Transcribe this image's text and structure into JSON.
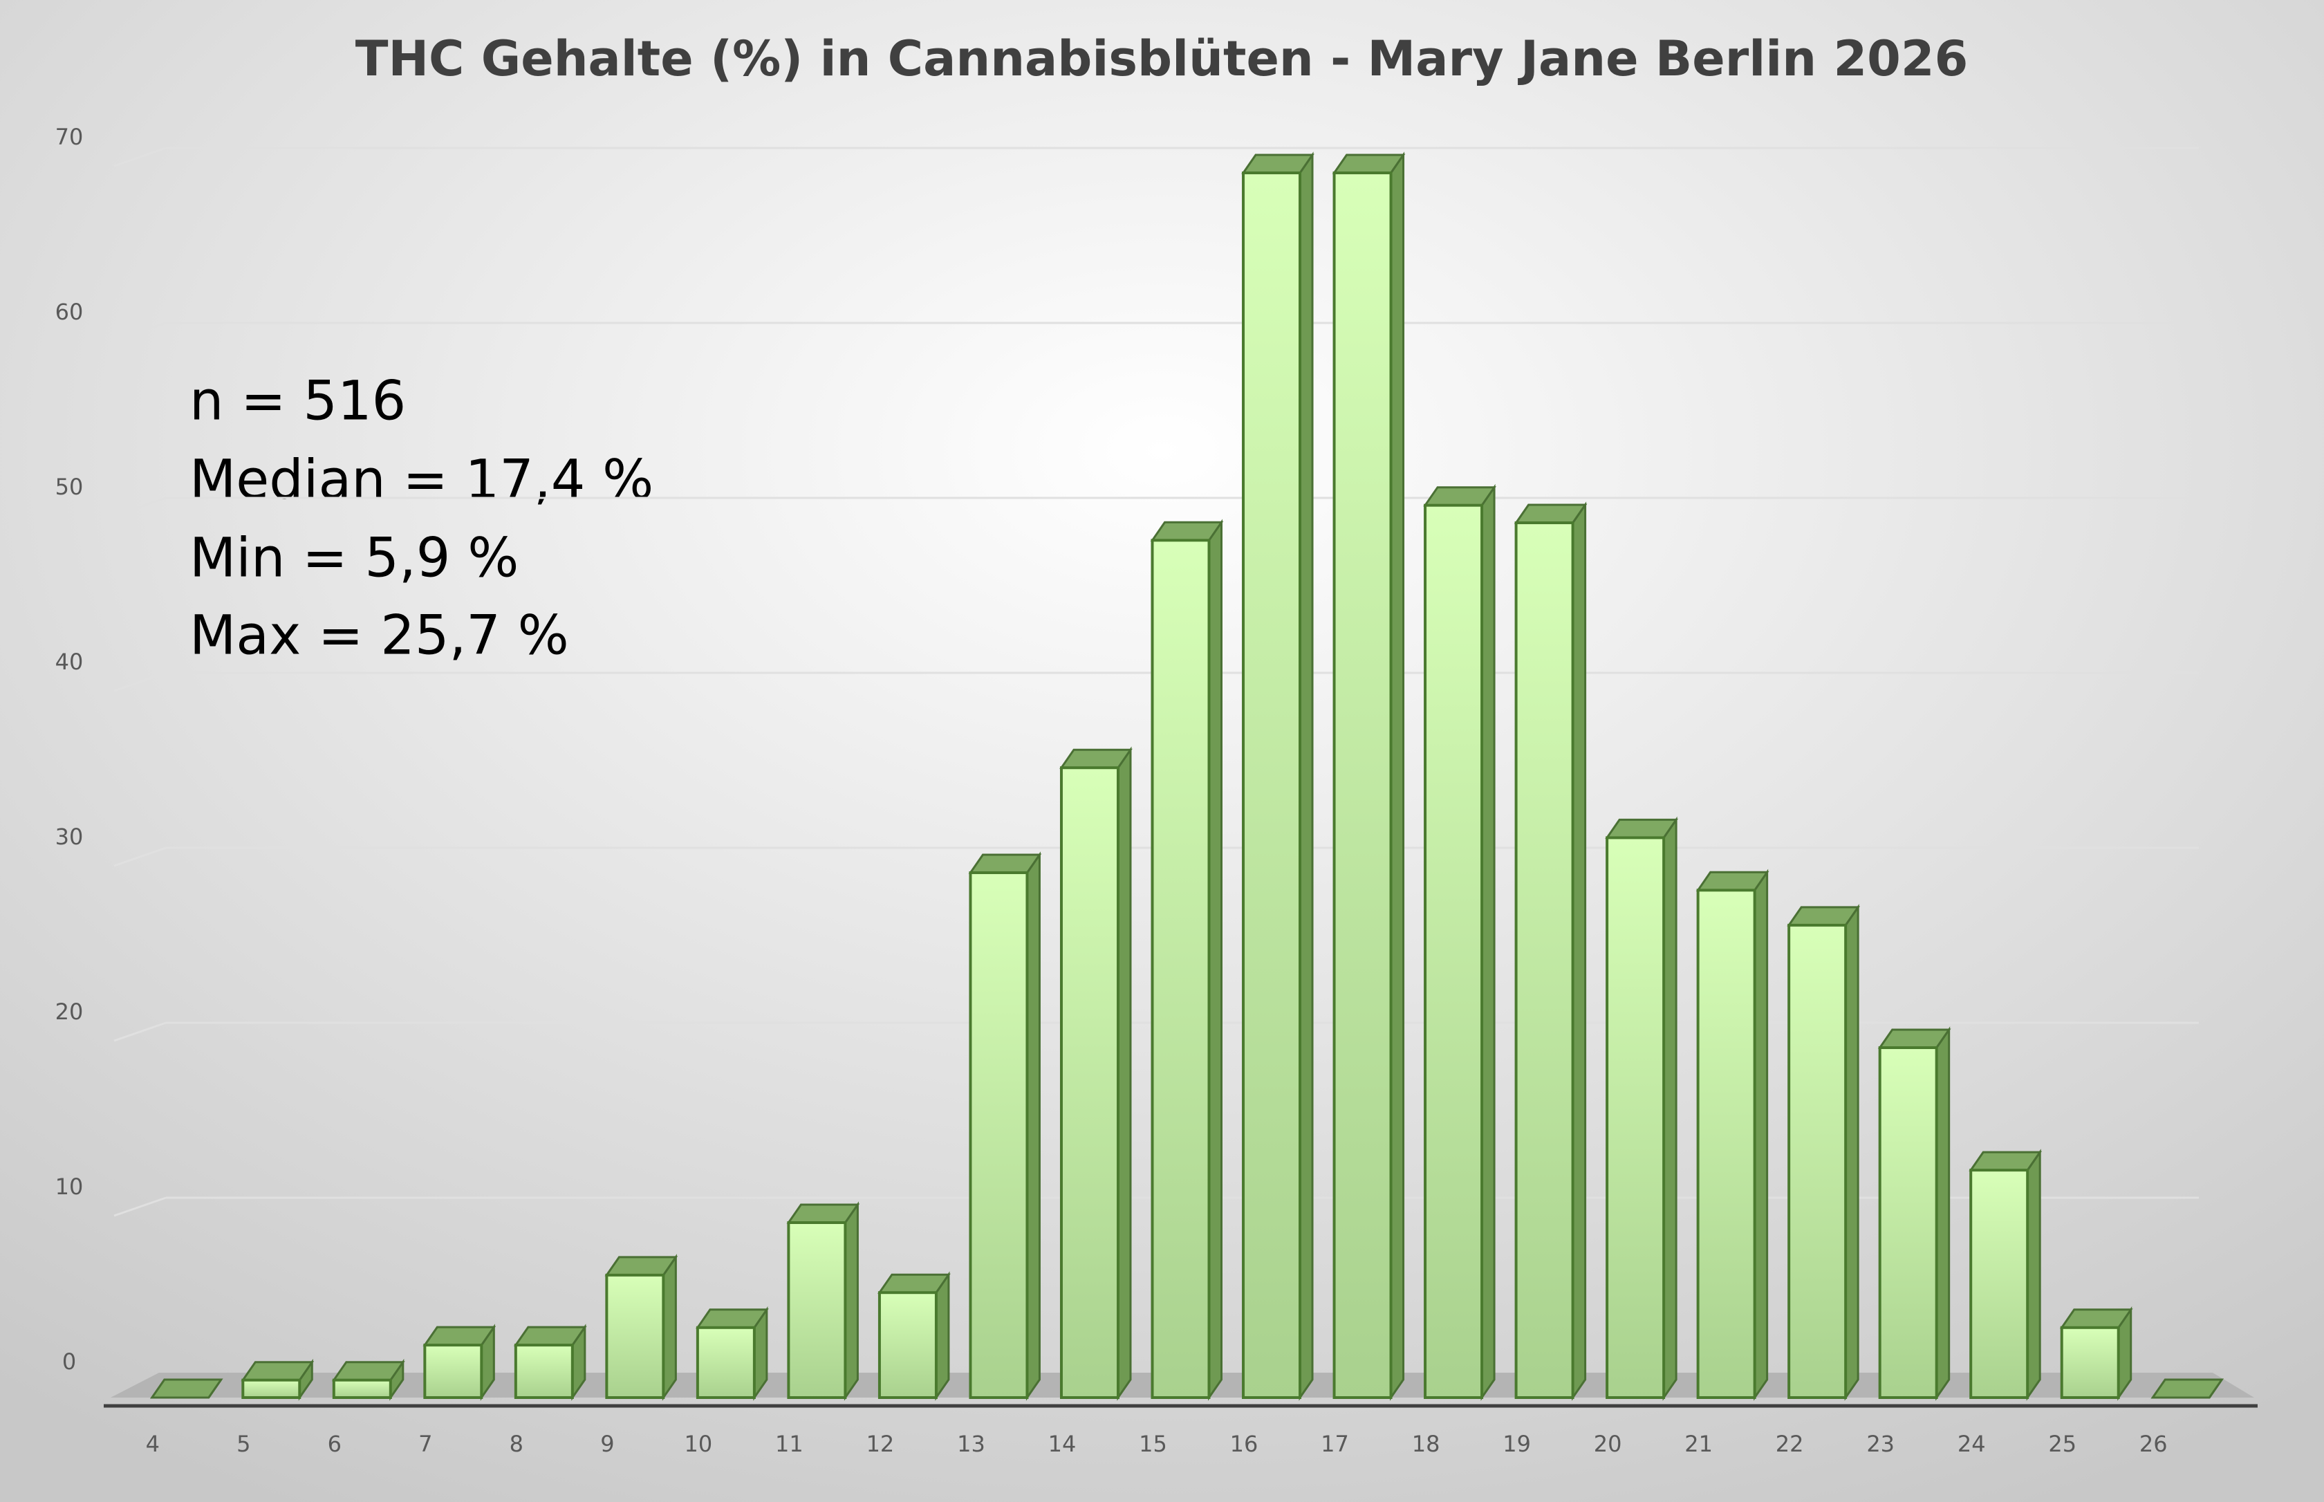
{
  "chart_data": {
    "type": "bar",
    "title": "THC Gehalte (%) in Cannabisblüten - Mary Jane Berlin 2026",
    "annotations": [
      "n = 516",
      "Median = 17,4 %",
      "Min = 5,9 %",
      "Max = 25,7 %"
    ],
    "categories": [
      "4",
      "5",
      "6",
      "7",
      "8",
      "9",
      "10",
      "11",
      "12",
      "13",
      "14",
      "15",
      "16",
      "17",
      "18",
      "19",
      "20",
      "21",
      "22",
      "23",
      "24",
      "25",
      "26"
    ],
    "values": [
      0,
      1,
      1,
      3,
      3,
      7,
      4,
      10,
      6,
      30,
      36,
      49,
      70,
      70,
      51,
      50,
      32,
      29,
      27,
      20,
      13,
      4,
      0
    ],
    "color": "#a9d18e",
    "ylim": [
      0,
      70
    ],
    "yticks": [
      0,
      10,
      20,
      30,
      40,
      50,
      60,
      70
    ],
    "grid": true
  }
}
